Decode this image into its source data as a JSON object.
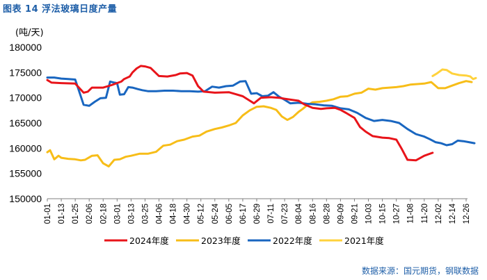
{
  "header": {
    "title": "图表 14 浮法玻璃日度产量"
  },
  "footer": {
    "source": "数据来源：国元期货，钢联数据"
  },
  "chart_data": {
    "type": "line",
    "title": "浮法玻璃日度产量",
    "ylabel": "(吨/天)",
    "xlabel": "",
    "ylim": [
      150000,
      180000
    ],
    "yticks": [
      "150000",
      "155000",
      "160000",
      "165000",
      "170000",
      "175000",
      "180000"
    ],
    "categories": [
      "01-01",
      "01-13",
      "01-25",
      "02-06",
      "02-18",
      "03-01",
      "03-13",
      "03-25",
      "04-06",
      "04-18",
      "04-30",
      "05-12",
      "05-24",
      "06-05",
      "06-17",
      "06-29",
      "07-11",
      "07-23",
      "08-04",
      "08-16",
      "08-28",
      "09-09",
      "09-21",
      "10-03",
      "10-15",
      "10-27",
      "11-08",
      "11-20",
      "12-02",
      "12-14",
      "12-26"
    ],
    "legend_position": "bottom",
    "series": [
      {
        "name": "2024年度",
        "color": "#e8141a",
        "x": [
          0,
          0.3,
          1,
          2,
          2.6,
          2.9,
          3.2,
          4,
          4.6,
          5.3,
          5.5,
          5.9,
          6.1,
          6.4,
          6.7,
          7,
          7.4,
          8,
          8.6,
          9.2,
          9.5,
          10,
          10.4,
          10.8,
          11.2,
          12,
          13,
          13.5,
          14,
          14.4,
          14.8,
          15.3,
          16,
          16.6,
          17,
          17.5,
          18,
          18.4,
          19,
          19.6,
          20,
          20.6,
          21,
          21.4,
          22,
          22.4,
          22.8,
          23.3,
          24,
          24.5,
          25,
          25.4,
          25.8,
          26.4,
          27,
          27.6
        ],
        "values": [
          173500,
          173000,
          172900,
          172800,
          171000,
          171200,
          172000,
          172000,
          172500,
          173200,
          173700,
          174200,
          175000,
          175800,
          176300,
          176200,
          175900,
          174300,
          174200,
          174500,
          174800,
          174900,
          174400,
          172300,
          171200,
          171000,
          171100,
          170700,
          170300,
          169600,
          168900,
          170000,
          170100,
          170000,
          169800,
          169600,
          169400,
          168700,
          168000,
          167800,
          167900,
          168000,
          167600,
          167000,
          166000,
          164200,
          163300,
          162400,
          162100,
          162000,
          161700,
          159800,
          157700,
          157600,
          158500,
          159100
        ]
      },
      {
        "name": "2023年度",
        "color": "#f7bd18",
        "x": [
          0,
          0.2,
          0.5,
          0.8,
          1,
          1.5,
          2,
          2.4,
          2.7,
          3.2,
          3.6,
          4,
          4.4,
          4.8,
          5.2,
          5.6,
          6,
          6.6,
          7.2,
          7.8,
          8.3,
          8.8,
          9.3,
          9.8,
          10.4,
          10.9,
          11.4,
          12,
          12.5,
          13,
          13.5,
          14,
          14.5,
          15,
          15.5,
          16,
          16.4,
          16.8,
          17.2,
          17.6,
          18,
          18.3,
          18.6,
          19,
          19.5,
          20,
          20.5,
          21,
          21.5,
          22,
          22.5,
          23,
          23.5,
          24,
          24.5,
          25,
          25.5,
          26,
          26.5,
          27,
          27.5,
          28,
          28.5,
          29,
          29.5,
          30,
          30.4
        ],
        "values": [
          159200,
          159600,
          157800,
          158500,
          158100,
          157900,
          157800,
          157600,
          157700,
          158500,
          158600,
          157000,
          156400,
          157700,
          157800,
          158300,
          158500,
          158900,
          158900,
          159300,
          160500,
          160700,
          161400,
          161700,
          162300,
          162500,
          163300,
          163800,
          164100,
          164500,
          165000,
          166500,
          167500,
          168200,
          168300,
          168000,
          167600,
          166300,
          165600,
          166200,
          167200,
          167800,
          168500,
          169100,
          169200,
          169400,
          169700,
          170200,
          170300,
          170800,
          171000,
          171800,
          171600,
          171900,
          172000,
          172100,
          172300,
          172600,
          172700,
          172800,
          173100,
          171900,
          171900,
          172400,
          172900,
          173300,
          173100
        ]
      },
      {
        "name": "2022年度",
        "color": "#1966c0",
        "x": [
          0,
          0.5,
          1,
          1.5,
          2,
          2.6,
          3,
          3.4,
          3.8,
          4.2,
          4.5,
          4.8,
          5,
          5.2,
          5.5,
          5.8,
          6.1,
          6.5,
          6.8,
          7.2,
          7.8,
          8.4,
          9,
          9.6,
          10.2,
          10.8,
          11.3,
          11.8,
          12.3,
          12.8,
          13.3,
          13.8,
          14.2,
          14.6,
          15,
          15.4,
          15.8,
          16.2,
          16.6,
          17,
          17.4,
          18,
          18.6,
          19.2,
          19.8,
          20.4,
          21,
          21.6,
          22.2,
          22.8,
          23.4,
          24,
          24.6,
          25.2,
          25.8,
          26.4,
          27,
          27.4,
          27.8,
          28.2,
          28.6,
          29,
          29.4,
          29.8,
          30.2,
          30.6
        ],
        "values": [
          174000,
          174000,
          173800,
          173700,
          173600,
          168600,
          168400,
          169200,
          169900,
          170000,
          173200,
          173000,
          172900,
          170600,
          170700,
          172100,
          172000,
          171700,
          171500,
          171300,
          171300,
          171400,
          171400,
          171300,
          171300,
          171200,
          171300,
          172200,
          172000,
          172300,
          172400,
          173200,
          173300,
          170800,
          170900,
          170300,
          170400,
          171100,
          170200,
          169600,
          168900,
          169000,
          168800,
          168700,
          168500,
          168400,
          167900,
          167700,
          167000,
          166000,
          165400,
          165600,
          165400,
          165000,
          163800,
          162800,
          162300,
          161800,
          161200,
          161000,
          160600,
          160800,
          161500,
          161400,
          161200,
          161000
        ]
      },
      {
        "name": "2021年度",
        "color": "#ffd23c",
        "x": [
          27.6,
          27.9,
          28.3,
          28.6,
          29,
          29.5,
          30,
          30.3,
          30.5,
          30.7
        ],
        "values": [
          174300,
          174800,
          175600,
          175500,
          174800,
          174500,
          174400,
          174200,
          173700,
          173900
        ]
      }
    ]
  }
}
